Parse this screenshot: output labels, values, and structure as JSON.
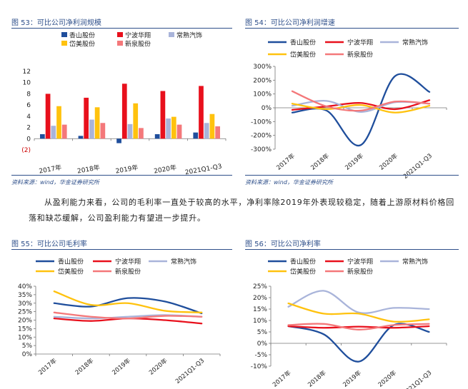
{
  "panels": [
    {
      "title": "图 53：可比公司净利润规模",
      "source": "资料来源：wind，华金证券研究所",
      "chart_data": {
        "type": "bar",
        "categories": [
          "2017年",
          "2018年",
          "2019年",
          "2020年",
          "2021Q1-Q3"
        ],
        "ylim": [
          -2,
          12
        ],
        "yticks": [
          -2,
          0,
          2,
          4,
          6,
          8,
          10,
          12
        ],
        "ytick_labels": [
          "(2)",
          "0",
          "2",
          "4",
          "6",
          "8",
          "10",
          "12"
        ],
        "legend": "top",
        "series": [
          {
            "name": "香山股份",
            "color": "#1f4e9c",
            "values": [
              0.8,
              0.5,
              -0.8,
              0.8,
              1.1
            ]
          },
          {
            "name": "宁波华翔",
            "color": "#e8101c",
            "values": [
              8.0,
              7.3,
              9.8,
              8.5,
              9.4
            ]
          },
          {
            "name": "常熟汽饰",
            "color": "#a9b4da",
            "values": [
              2.3,
              3.4,
              2.6,
              3.6,
              2.8
            ]
          },
          {
            "name": "岱美股份",
            "color": "#ffc20e",
            "values": [
              5.8,
              5.6,
              6.3,
              3.9,
              4.4
            ]
          },
          {
            "name": "新泉股份",
            "color": "#f4787a",
            "values": [
              2.5,
              2.8,
              1.9,
              2.5,
              2.2
            ]
          }
        ]
      }
    },
    {
      "title": "图 54：可比公司净利润增速",
      "source": "资料来源：wind，华金证券研究所",
      "chart_data": {
        "type": "line",
        "categories": [
          "2017年",
          "2018年",
          "2019年",
          "2020年",
          "2021Q1-Q3"
        ],
        "ylim": [
          -300,
          300
        ],
        "yticks": [
          -300,
          -200,
          -100,
          0,
          100,
          200,
          300
        ],
        "ytick_labels": [
          "-300%",
          "-200%",
          "-100%",
          "0%",
          "100%",
          "200%",
          "300%"
        ],
        "legend": "top",
        "series": [
          {
            "name": "香山股份",
            "color": "#1f4e9c",
            "values": [
              -35,
              -20,
              -270,
              230,
              115
            ]
          },
          {
            "name": "宁波华翔",
            "color": "#e8101c",
            "values": [
              -15,
              10,
              35,
              -10,
              55
            ]
          },
          {
            "name": "常熟汽饰",
            "color": "#a9b4da",
            "values": [
              15,
              50,
              -30,
              40,
              30
            ]
          },
          {
            "name": "岱美股份",
            "color": "#ffc20e",
            "values": [
              30,
              -10,
              20,
              -35,
              15
            ]
          },
          {
            "name": "新泉股份",
            "color": "#f4787a",
            "values": [
              120,
              10,
              -20,
              45,
              30
            ]
          }
        ]
      }
    },
    {
      "title": "图 55：可比公司毛利率",
      "chart_data": {
        "type": "line",
        "categories": [
          "2017年",
          "2018年",
          "2019年",
          "2020年",
          "2021Q1-Q3"
        ],
        "ylim": [
          0,
          40
        ],
        "yticks": [
          0,
          5,
          10,
          15,
          20,
          25,
          30,
          35,
          40
        ],
        "ytick_labels": [
          "0%",
          "5%",
          "10%",
          "15%",
          "20%",
          "25%",
          "30%",
          "35%",
          "40%"
        ],
        "legend": "top",
        "series": [
          {
            "name": "香山股份",
            "color": "#1f4e9c",
            "values": [
              30,
              28,
              33,
              31,
              24
            ]
          },
          {
            "name": "宁波华翔",
            "color": "#e8101c",
            "values": [
              21,
              19.5,
              21,
              20,
              18
            ]
          },
          {
            "name": "常熟汽饰",
            "color": "#a9b4da",
            "values": [
              22,
              21,
              22,
              23,
              22
            ]
          },
          {
            "name": "岱美股份",
            "color": "#ffc20e",
            "values": [
              37,
              29,
              30,
              25.5,
              24.5
            ]
          },
          {
            "name": "新泉股份",
            "color": "#f4787a",
            "values": [
              24.5,
              22,
              21,
              22.5,
              22
            ]
          }
        ]
      }
    },
    {
      "title": "图 56：可比公司净利率",
      "chart_data": {
        "type": "line",
        "categories": [
          "2017年",
          "2018年",
          "2019年",
          "2020年",
          "2021Q1-Q3"
        ],
        "ylim": [
          -10,
          25
        ],
        "yticks": [
          -10,
          -5,
          0,
          5,
          10,
          15,
          20,
          25
        ],
        "ytick_labels": [
          "-10%",
          "-5%",
          "0%",
          "5%",
          "10%",
          "15%",
          "20%",
          "25%"
        ],
        "legend": "top",
        "series": [
          {
            "name": "香山股份",
            "color": "#1f4e9c",
            "values": [
              7.5,
              4,
              -8,
              8,
              5
            ]
          },
          {
            "name": "宁波华翔",
            "color": "#e8101c",
            "values": [
              7.5,
              6.8,
              7.3,
              6.8,
              7.5
            ]
          },
          {
            "name": "常熟汽饰",
            "color": "#a9b4da",
            "values": [
              16,
              23,
              13.5,
              15.5,
              15
            ]
          },
          {
            "name": "岱美股份",
            "color": "#ffc20e",
            "values": [
              17.5,
              13,
              13,
              9.5,
              10.5
            ]
          },
          {
            "name": "新泉股份",
            "color": "#f4787a",
            "values": [
              8,
              8.5,
              6,
              8,
              8.5
            ]
          }
        ]
      }
    }
  ],
  "paragraph": "从盈利能力来看，公司的毛利率一直处于较高的水平，净利率除2019年外表现较稳定，随着上游原材料价格回落和缺芯缓解，公司盈利能力有望进一步提升。"
}
